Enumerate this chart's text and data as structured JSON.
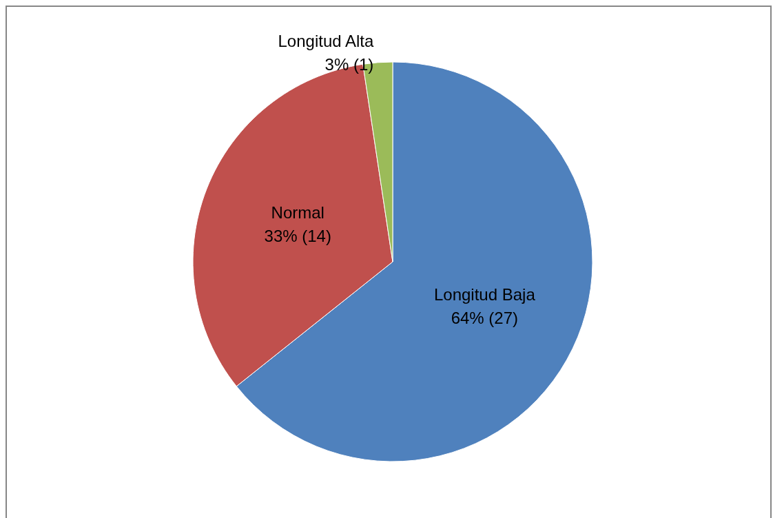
{
  "chart_data": {
    "type": "pie",
    "categories": [
      "Longitud Baja",
      "Normal",
      "Longitud Alta"
    ],
    "values": [
      27,
      14,
      1
    ],
    "value_labels": [
      "64% (27)",
      "33% (14)",
      "3% (1)"
    ],
    "colors": [
      "#4f81bd",
      "#c0504d",
      "#9bbb59"
    ]
  }
}
